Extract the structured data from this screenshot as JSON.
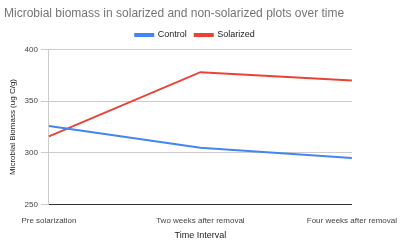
{
  "chart_data": {
    "type": "line",
    "title": "Microbial biomass in solarized and non-solarized plots over time",
    "x_label": "Time Interval",
    "y_label": "Microbial Biomass (ug C/g)",
    "categories": [
      "Pre solarization",
      "Two weeks after removal",
      "Four weeks after removal"
    ],
    "series": [
      {
        "name": "Control",
        "color": "#4285f4",
        "values": [
          326,
          305,
          295
        ]
      },
      {
        "name": "Solarized",
        "color": "#ea4335",
        "values": [
          316,
          378,
          370
        ]
      }
    ],
    "ylim": [
      250,
      400
    ],
    "yticks": [
      250,
      300,
      350,
      400
    ],
    "grid": true,
    "legend": "top"
  }
}
